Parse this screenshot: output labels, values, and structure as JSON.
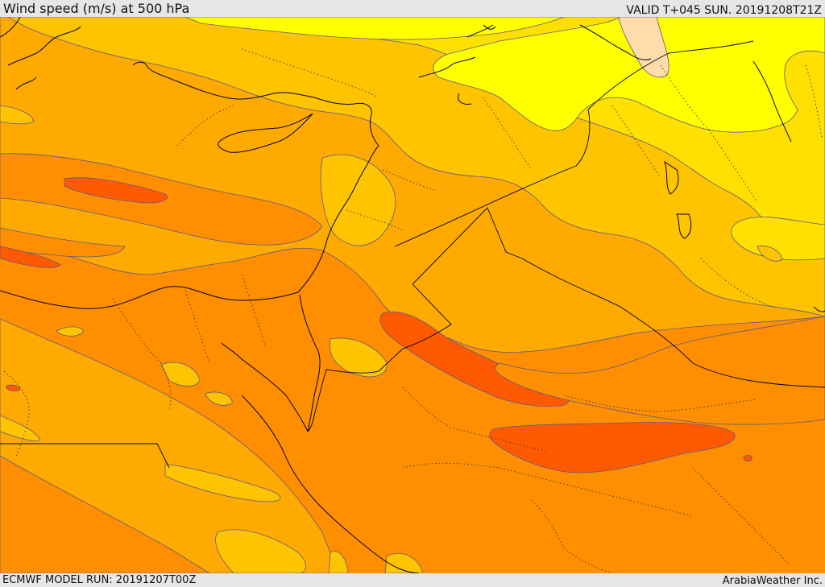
{
  "header": {
    "title": "Wind speed (m/s) at 500 hPa",
    "valid_time": "VALID T+045 SUN. 20191208T21Z"
  },
  "footer": {
    "model_run": "ECMWF MODEL RUN: 20191207T00Z",
    "credit": "ArabiaWeather Inc."
  },
  "map": {
    "palette": {
      "band_lt_yellow": "#ffff00",
      "band_yellow": "#ffe000",
      "band_gold": "#ffc400",
      "band_amber": "#ffaa00",
      "band_orange": "#ff8f00",
      "band_deep_orange": "#ff7000",
      "band_red_orange": "#ff5a00",
      "band_peach": "#ffdcaa",
      "contour": "#5a5a8c",
      "coastline": "#000000",
      "borders": "#000000"
    }
  }
}
